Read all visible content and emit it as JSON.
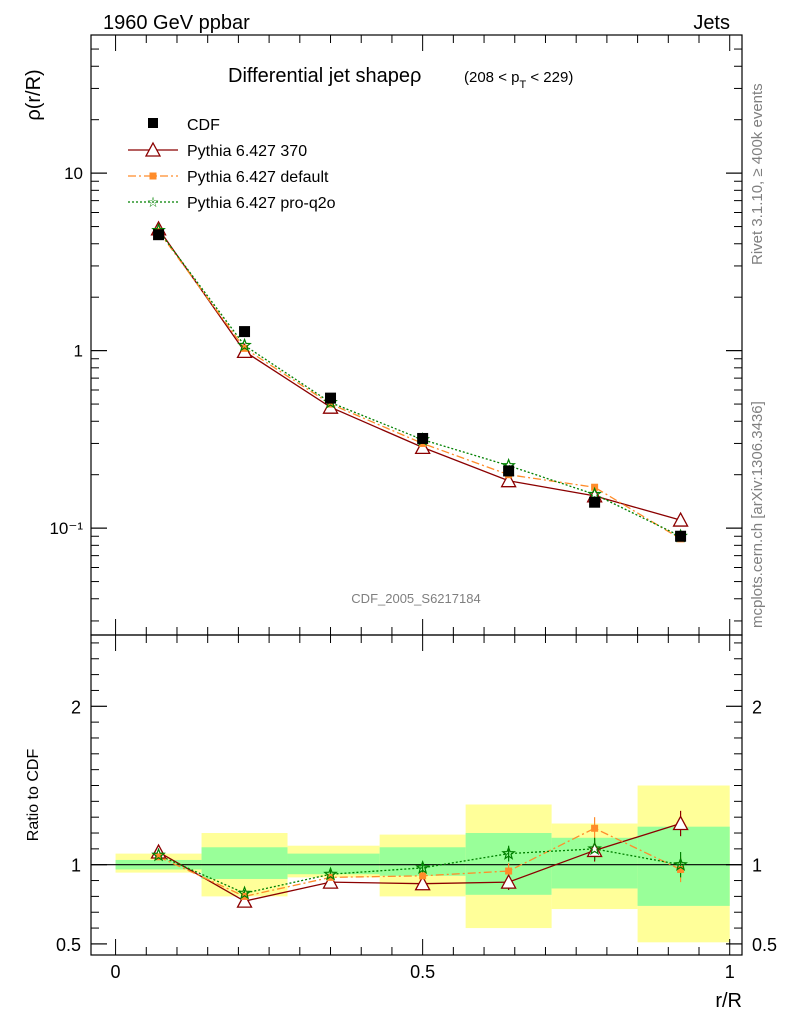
{
  "header": {
    "energy_label": "1960 GeV ppbar",
    "process_label": "Jets"
  },
  "side_labels": {
    "rivet": "Rivet 3.1.10, ≥ 400k events",
    "mcplots": "mcplots.cern.ch [arXiv:1306.3436]"
  },
  "chart_data": {
    "type": "line",
    "title": "Differential jet shapeρ",
    "title_cut": "(208 < p",
    "title_cut_sub": "T",
    "title_cut_end": " < 229)",
    "analysis_id": "CDF_2005_S6217184",
    "xlabel": "r/R",
    "ylabel": "ρ(r/R)",
    "ratio_ylabel": "Ratio to CDF",
    "xlim": [
      -0.04,
      1.02
    ],
    "ylim_log": [
      0.025,
      60
    ],
    "ratio_ylim": [
      0.43,
      2.45
    ],
    "x_ticks": [
      "0",
      "0.5",
      "1"
    ],
    "y_ticks": [
      "10⁻¹",
      "1",
      "10"
    ],
    "ratio_ticks": [
      "0.5",
      "1",
      "2"
    ],
    "x": [
      0.07,
      0.21,
      0.35,
      0.5,
      0.64,
      0.78,
      0.92
    ],
    "bin_edges": [
      0,
      0.14,
      0.28,
      0.43,
      0.57,
      0.71,
      0.85,
      1.0
    ],
    "series": [
      {
        "name": "CDF",
        "values": [
          4.5,
          1.28,
          0.54,
          0.32,
          0.21,
          0.14,
          0.09
        ],
        "color": "#000000",
        "marker": "square",
        "line": "none"
      },
      {
        "name": "Pythia 6.427 370",
        "values": [
          4.85,
          0.99,
          0.48,
          0.285,
          0.185,
          0.152,
          0.111
        ],
        "color": "#8b0000",
        "marker": "triangle",
        "line": "solid"
      },
      {
        "name": "Pythia 6.427 default",
        "values": [
          4.7,
          1.03,
          0.5,
          0.3,
          0.2,
          0.17,
          0.087
        ],
        "color": "#ff8c2a",
        "marker": "smallsquare",
        "line": "dashdot"
      },
      {
        "name": "Pythia 6.427 pro-q2o",
        "values": [
          4.75,
          1.07,
          0.51,
          0.315,
          0.225,
          0.155,
          0.09
        ],
        "color": "#008000",
        "marker": "star",
        "line": "dotted"
      }
    ],
    "ratios": [
      {
        "name": "Pythia 6.427 370",
        "values": [
          1.08,
          0.77,
          0.89,
          0.88,
          0.89,
          1.09,
          1.26
        ],
        "errors": [
          0.02,
          0.02,
          0.03,
          0.04,
          0.05,
          0.07,
          0.08
        ]
      },
      {
        "name": "Pythia 6.427 default",
        "values": [
          1.05,
          0.8,
          0.92,
          0.93,
          0.96,
          1.23,
          0.97
        ],
        "errors": [
          0.02,
          0.02,
          0.03,
          0.04,
          0.05,
          0.07,
          0.08
        ]
      },
      {
        "name": "Pythia 6.427 pro-q2o",
        "values": [
          1.06,
          0.82,
          0.94,
          0.98,
          1.07,
          1.1,
          1.0
        ],
        "errors": [
          0.02,
          0.02,
          0.03,
          0.04,
          0.05,
          0.07,
          0.08
        ]
      }
    ],
    "uncertainty_bands": {
      "green_low": [
        0.97,
        0.91,
        0.94,
        0.93,
        0.81,
        0.85,
        0.74
      ],
      "green_high": [
        1.03,
        1.11,
        1.07,
        1.11,
        1.2,
        1.17,
        1.24
      ],
      "yellow_low": [
        0.95,
        0.8,
        0.92,
        0.8,
        0.6,
        0.72,
        0.51
      ],
      "yellow_high": [
        1.07,
        1.2,
        1.12,
        1.19,
        1.38,
        1.26,
        1.5
      ]
    }
  }
}
